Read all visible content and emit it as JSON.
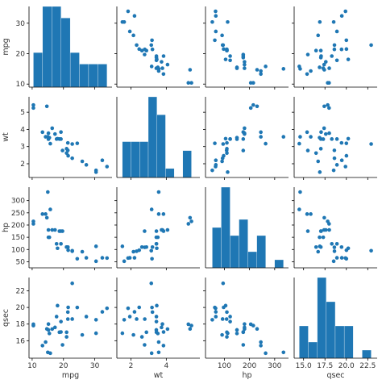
{
  "variables": [
    "mpg",
    "wt",
    "hp",
    "qsec"
  ],
  "colors": {
    "point": "#1f77b4",
    "bar": "#1f77b4",
    "axis": "#000000"
  },
  "chart_data": {
    "type": "scatter",
    "layout": "pairplot",
    "diagonal": "histogram",
    "variables": [
      "mpg",
      "wt",
      "hp",
      "qsec"
    ],
    "axis_labels": [
      "mpg",
      "wt",
      "hp",
      "qsec"
    ],
    "ranges": {
      "mpg": [
        9,
        35.5
      ],
      "wt": [
        1.2,
        5.9
      ],
      "hp": [
        25,
        355
      ],
      "qsec": [
        13.9,
        23.6
      ]
    },
    "ticks": {
      "mpg": [
        10,
        20,
        30
      ],
      "wt": [
        2,
        3,
        4,
        5
      ],
      "hp": [
        50,
        100,
        150,
        200,
        250,
        300
      ],
      "qsec": [
        16,
        18,
        20,
        22
      ]
    },
    "bottom_tick_labels": {
      "mpg": [
        "10",
        "20",
        "30"
      ],
      "wt": [
        "2",
        "4"
      ],
      "hp": [
        "100",
        "200",
        "300"
      ],
      "qsec": [
        "15.0",
        "17.5",
        "20.0",
        "22.5"
      ]
    },
    "bottom_ticks": {
      "mpg": [
        10,
        20,
        30
      ],
      "wt": [
        2,
        4
      ],
      "hp": [
        100,
        200,
        300
      ],
      "qsec": [
        15,
        17.5,
        20,
        22.5
      ]
    },
    "points": [
      {
        "mpg": 21.0,
        "wt": 2.62,
        "hp": 110,
        "qsec": 16.46
      },
      {
        "mpg": 21.0,
        "wt": 2.875,
        "hp": 110,
        "qsec": 17.02
      },
      {
        "mpg": 22.8,
        "wt": 2.32,
        "hp": 93,
        "qsec": 18.61
      },
      {
        "mpg": 21.4,
        "wt": 3.215,
        "hp": 110,
        "qsec": 19.44
      },
      {
        "mpg": 18.7,
        "wt": 3.44,
        "hp": 175,
        "qsec": 17.02
      },
      {
        "mpg": 18.1,
        "wt": 3.46,
        "hp": 105,
        "qsec": 20.22
      },
      {
        "mpg": 14.3,
        "wt": 3.57,
        "hp": 245,
        "qsec": 15.84
      },
      {
        "mpg": 24.4,
        "wt": 3.19,
        "hp": 62,
        "qsec": 20.0
      },
      {
        "mpg": 22.8,
        "wt": 3.15,
        "hp": 95,
        "qsec": 22.9
      },
      {
        "mpg": 19.2,
        "wt": 3.44,
        "hp": 123,
        "qsec": 18.3
      },
      {
        "mpg": 17.8,
        "wt": 3.44,
        "hp": 123,
        "qsec": 18.9
      },
      {
        "mpg": 16.4,
        "wt": 4.07,
        "hp": 180,
        "qsec": 17.4
      },
      {
        "mpg": 17.3,
        "wt": 3.73,
        "hp": 180,
        "qsec": 17.6
      },
      {
        "mpg": 15.2,
        "wt": 3.78,
        "hp": 180,
        "qsec": 18.0
      },
      {
        "mpg": 10.4,
        "wt": 5.25,
        "hp": 205,
        "qsec": 17.98
      },
      {
        "mpg": 10.4,
        "wt": 5.424,
        "hp": 215,
        "qsec": 17.82
      },
      {
        "mpg": 14.7,
        "wt": 5.345,
        "hp": 230,
        "qsec": 17.42
      },
      {
        "mpg": 32.4,
        "wt": 2.2,
        "hp": 66,
        "qsec": 19.47
      },
      {
        "mpg": 30.4,
        "wt": 1.615,
        "hp": 52,
        "qsec": 18.52
      },
      {
        "mpg": 33.9,
        "wt": 1.835,
        "hp": 65,
        "qsec": 19.9
      },
      {
        "mpg": 21.5,
        "wt": 2.465,
        "hp": 97,
        "qsec": 20.01
      },
      {
        "mpg": 15.5,
        "wt": 3.52,
        "hp": 150,
        "qsec": 16.87
      },
      {
        "mpg": 15.2,
        "wt": 3.435,
        "hp": 150,
        "qsec": 17.3
      },
      {
        "mpg": 13.3,
        "wt": 3.84,
        "hp": 245,
        "qsec": 15.41
      },
      {
        "mpg": 19.2,
        "wt": 3.845,
        "hp": 175,
        "qsec": 17.05
      },
      {
        "mpg": 27.3,
        "wt": 1.935,
        "hp": 66,
        "qsec": 18.9
      },
      {
        "mpg": 26.0,
        "wt": 2.14,
        "hp": 91,
        "qsec": 16.7
      },
      {
        "mpg": 30.4,
        "wt": 1.513,
        "hp": 113,
        "qsec": 16.9
      },
      {
        "mpg": 15.8,
        "wt": 3.17,
        "hp": 264,
        "qsec": 14.5
      },
      {
        "mpg": 19.7,
        "wt": 2.77,
        "hp": 175,
        "qsec": 15.5
      },
      {
        "mpg": 15.0,
        "wt": 3.57,
        "hp": 335,
        "qsec": 14.6
      },
      {
        "mpg": 21.4,
        "wt": 2.78,
        "hp": 109,
        "qsec": 18.6
      }
    ],
    "legend": "none",
    "grid": false
  }
}
